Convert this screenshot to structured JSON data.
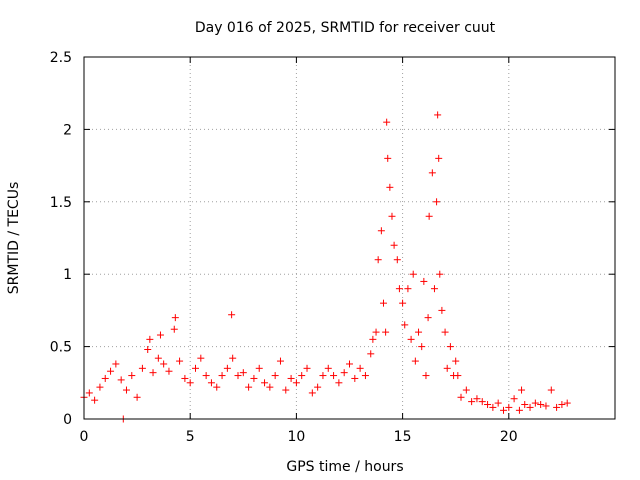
{
  "chart_data": {
    "type": "scatter",
    "title": "Day 016 of 2025, SRMTID for receiver cuut",
    "xlabel": "GPS time / hours",
    "ylabel": "SRMTID / TECUs",
    "xlim": [
      0,
      25
    ],
    "ylim": [
      0,
      2.5
    ],
    "x_ticks": [
      0,
      5,
      10,
      15,
      20
    ],
    "x_tick_labels": [
      "0",
      "5",
      "10",
      "15",
      "20"
    ],
    "y_ticks": [
      0,
      0.5,
      1,
      1.5,
      2,
      2.5
    ],
    "y_tick_labels": [
      "0",
      "0.5",
      "1",
      "1.5",
      "2",
      "2.5"
    ],
    "grid": true,
    "marker": "+",
    "marker_color": "#ff0000",
    "series": [
      {
        "name": "SRMTID",
        "x": [
          0.0,
          0.25,
          0.5,
          0.75,
          1.0,
          1.25,
          1.5,
          1.75,
          1.85,
          2.0,
          2.25,
          2.5,
          2.75,
          3.0,
          3.1,
          3.25,
          3.5,
          3.6,
          3.75,
          4.0,
          4.25,
          4.3,
          4.5,
          4.75,
          5.0,
          5.25,
          5.5,
          5.75,
          6.0,
          6.25,
          6.5,
          6.75,
          6.95,
          7.0,
          7.25,
          7.5,
          7.75,
          8.0,
          8.25,
          8.5,
          8.75,
          9.0,
          9.25,
          9.5,
          9.75,
          10.0,
          10.25,
          10.5,
          10.75,
          11.0,
          11.25,
          11.5,
          11.75,
          12.0,
          12.25,
          12.5,
          12.75,
          13.0,
          13.25,
          13.5,
          13.6,
          13.75,
          13.85,
          14.0,
          14.1,
          14.2,
          14.25,
          14.3,
          14.4,
          14.5,
          14.6,
          14.75,
          14.85,
          15.0,
          15.1,
          15.25,
          15.4,
          15.5,
          15.6,
          15.75,
          15.9,
          16.0,
          16.1,
          16.2,
          16.25,
          16.4,
          16.5,
          16.6,
          16.65,
          16.7,
          16.75,
          16.85,
          17.0,
          17.1,
          17.25,
          17.4,
          17.5,
          17.6,
          17.75,
          18.0,
          18.25,
          18.5,
          18.75,
          19.0,
          19.25,
          19.5,
          19.75,
          20.0,
          20.25,
          20.5,
          20.6,
          20.75,
          21.0,
          21.25,
          21.5,
          21.75,
          22.0,
          22.25,
          22.5,
          22.75
        ],
        "y": [
          0.15,
          0.18,
          0.13,
          0.22,
          0.28,
          0.33,
          0.38,
          0.27,
          0.0,
          0.2,
          0.3,
          0.15,
          0.35,
          0.48,
          0.55,
          0.32,
          0.42,
          0.58,
          0.38,
          0.33,
          0.62,
          0.7,
          0.4,
          0.28,
          0.25,
          0.35,
          0.42,
          0.3,
          0.25,
          0.22,
          0.3,
          0.35,
          0.72,
          0.42,
          0.3,
          0.32,
          0.22,
          0.28,
          0.35,
          0.25,
          0.22,
          0.3,
          0.4,
          0.2,
          0.28,
          0.25,
          0.3,
          0.35,
          0.18,
          0.22,
          0.3,
          0.35,
          0.3,
          0.25,
          0.32,
          0.38,
          0.28,
          0.35,
          0.3,
          0.45,
          0.55,
          0.6,
          1.1,
          1.3,
          0.8,
          0.6,
          2.05,
          1.8,
          1.6,
          1.4,
          1.2,
          1.1,
          0.9,
          0.8,
          0.65,
          0.9,
          0.55,
          1.0,
          0.4,
          0.6,
          0.5,
          0.95,
          0.3,
          0.7,
          1.4,
          1.7,
          0.9,
          1.5,
          2.1,
          1.8,
          1.0,
          0.75,
          0.6,
          0.35,
          0.5,
          0.3,
          0.4,
          0.3,
          0.15,
          0.2,
          0.12,
          0.14,
          0.12,
          0.1,
          0.08,
          0.11,
          0.06,
          0.08,
          0.14,
          0.06,
          0.2,
          0.1,
          0.08,
          0.11,
          0.1,
          0.09,
          0.2,
          0.08,
          0.1,
          0.11
        ]
      }
    ]
  }
}
